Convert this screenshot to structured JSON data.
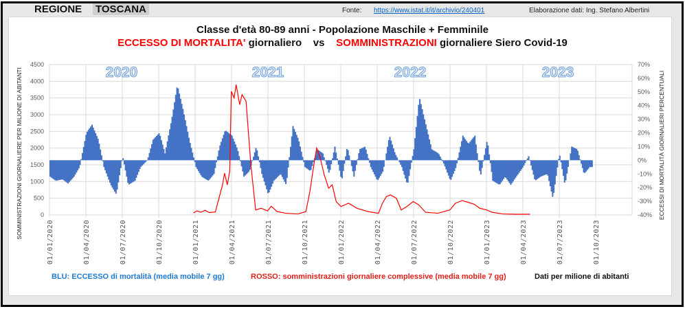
{
  "header": {
    "region_label": "REGIONE",
    "region_value": "TOSCANA",
    "fonte_label": "Fonte:",
    "fonte_link": "https://www.istat.it/it/archivio/240401",
    "credit": "Elaborazione dati: Ing. Stefano Albertini"
  },
  "title": {
    "line1": "Classe d'età 80-89 anni - Popolazione Maschile + Femminile",
    "part_a": "ECCESSO DI MORTALITA'",
    "part_b": " giornaliero    vs    ",
    "part_c": "SOMMINISTRAZIONI",
    "part_d": " giornaliere Siero Covid-19"
  },
  "legend": {
    "blue": "BLU: ECCESSO di mortalità  (media mobile 7 gg)",
    "red": "ROSSO: somministrazioni giornaliere complessive (media mobile 7 gg)",
    "note": "Dati per milione di abitanti"
  },
  "colors": {
    "blue": "#4472c4",
    "red": "#ff0000",
    "legend_blue": "#1f7ad1",
    "legend_red": "#e0201a"
  },
  "chart_data": {
    "type": "bar+line",
    "year_labels": [
      "2020",
      "2021",
      "2022",
      "2023"
    ],
    "x_ticks": [
      "01/01/2020",
      "01/04/2020",
      "01/07/2020",
      "01/10/2020",
      "01/01/2021",
      "01/04/2021",
      "01/07/2021",
      "01/10/2021",
      "01/01/2022",
      "01/04/2022",
      "01/07/2022",
      "01/10/2022",
      "01/01/2023",
      "01/04/2023",
      "01/07/2023",
      "01/10/2023"
    ],
    "xlim": [
      "2020-01-01",
      "2024-01-01"
    ],
    "y_left": {
      "label": "SOMMINISTRAZIONI GIORNALIERE PER MILIONE DI ABITANTI",
      "range": [
        0,
        4500
      ],
      "ticks": [
        "0",
        "500",
        "1000",
        "1500",
        "2000",
        "2500",
        "3000",
        "3500",
        "4000",
        "4500"
      ]
    },
    "y_right": {
      "label": "ECCESSI DI MORTALITÀ GIORNALIERI PERCENTUALI",
      "range": [
        -40,
        70
      ],
      "ticks": [
        "-40%",
        "-30%",
        "-20%",
        "-10%",
        "0%",
        "10%",
        "20%",
        "30%",
        "40%",
        "50%",
        "60%",
        "70%"
      ]
    },
    "series": [
      {
        "name": "Eccesso di mortalità (%)",
        "axis": "right",
        "kind": "bar",
        "start": "2020-01-01",
        "step": "semi-monthly",
        "values": [
          -12,
          -15,
          -14,
          -17,
          -12,
          -5,
          20,
          26,
          15,
          -5,
          -18,
          -25,
          3,
          -18,
          -15,
          -5,
          0,
          15,
          20,
          5,
          30,
          55,
          35,
          15,
          -5,
          -12,
          -15,
          -10,
          10,
          22,
          18,
          8,
          -12,
          -8,
          10,
          -10,
          -25,
          -15,
          -10,
          -18,
          25,
          15,
          -5,
          -8,
          8,
          5,
          -10,
          10,
          -15,
          10,
          -12,
          8,
          10,
          -5,
          -15,
          -8,
          18,
          5,
          -5,
          -18,
          8,
          46,
          25,
          8,
          5,
          -3,
          -15,
          -5,
          18,
          12,
          18,
          -12,
          15,
          -15,
          -18,
          -12,
          -18,
          -12,
          -5,
          3,
          -15,
          -12,
          -10,
          -28,
          5,
          -18,
          10,
          8,
          -10,
          -5
        ]
      },
      {
        "name": "Somministrazioni giornaliere",
        "axis": "left",
        "kind": "line",
        "points": [
          [
            "2020-12-27",
            60
          ],
          [
            "2021-01-05",
            120
          ],
          [
            "2021-01-15",
            80
          ],
          [
            "2021-01-25",
            140
          ],
          [
            "2021-02-05",
            70
          ],
          [
            "2021-02-20",
            90
          ],
          [
            "2021-03-01",
            500
          ],
          [
            "2021-03-10",
            900
          ],
          [
            "2021-03-15",
            1250
          ],
          [
            "2021-03-22",
            900
          ],
          [
            "2021-03-28",
            1300
          ],
          [
            "2021-04-01",
            3700
          ],
          [
            "2021-04-08",
            3500
          ],
          [
            "2021-04-13",
            3900
          ],
          [
            "2021-04-22",
            3300
          ],
          [
            "2021-04-28",
            3600
          ],
          [
            "2021-05-08",
            3400
          ],
          [
            "2021-05-20",
            1500
          ],
          [
            "2021-06-01",
            150
          ],
          [
            "2021-06-15",
            200
          ],
          [
            "2021-07-01",
            120
          ],
          [
            "2021-07-10",
            260
          ],
          [
            "2021-07-25",
            100
          ],
          [
            "2021-08-15",
            50
          ],
          [
            "2021-09-15",
            30
          ],
          [
            "2021-10-05",
            100
          ],
          [
            "2021-10-15",
            700
          ],
          [
            "2021-10-25",
            1500
          ],
          [
            "2021-11-01",
            2000
          ],
          [
            "2021-11-10",
            1700
          ],
          [
            "2021-11-20",
            1200
          ],
          [
            "2021-12-01",
            800
          ],
          [
            "2021-12-10",
            900
          ],
          [
            "2021-12-20",
            400
          ],
          [
            "2022-01-01",
            250
          ],
          [
            "2022-01-20",
            350
          ],
          [
            "2022-02-10",
            200
          ],
          [
            "2022-03-10",
            100
          ],
          [
            "2022-04-05",
            50
          ],
          [
            "2022-04-15",
            350
          ],
          [
            "2022-04-25",
            550
          ],
          [
            "2022-05-05",
            600
          ],
          [
            "2022-05-20",
            500
          ],
          [
            "2022-06-01",
            150
          ],
          [
            "2022-06-15",
            250
          ],
          [
            "2022-07-01",
            400
          ],
          [
            "2022-07-15",
            300
          ],
          [
            "2022-08-01",
            80
          ],
          [
            "2022-09-01",
            50
          ],
          [
            "2022-10-01",
            150
          ],
          [
            "2022-10-15",
            350
          ],
          [
            "2022-11-01",
            430
          ],
          [
            "2022-11-15",
            380
          ],
          [
            "2022-12-01",
            320
          ],
          [
            "2022-12-15",
            200
          ],
          [
            "2023-01-01",
            150
          ],
          [
            "2023-01-15",
            80
          ],
          [
            "2023-02-10",
            30
          ],
          [
            "2023-03-15",
            20
          ],
          [
            "2023-04-20",
            20
          ]
        ]
      }
    ]
  }
}
